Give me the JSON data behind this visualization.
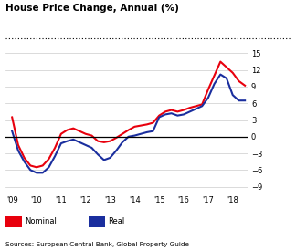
{
  "title": "House Price Change, Annual (%)",
  "source": "Sources: European Central Bank, Global Property Guide",
  "yticks": [
    -9,
    -6,
    -3,
    0,
    3,
    6,
    9,
    12,
    15
  ],
  "xtick_labels": [
    "'09",
    "'10",
    "'11",
    "'12",
    "'13",
    "'14",
    "'15",
    "'16",
    "'17",
    "'18"
  ],
  "nominal_color": "#e8000d",
  "real_color": "#1a2e9e",
  "background_color": "#ffffff",
  "nominal_x": [
    2009.0,
    2009.25,
    2009.5,
    2009.75,
    2010.0,
    2010.25,
    2010.5,
    2010.75,
    2011.0,
    2011.25,
    2011.5,
    2011.75,
    2012.0,
    2012.25,
    2012.5,
    2012.75,
    2013.0,
    2013.25,
    2013.5,
    2013.75,
    2014.0,
    2014.25,
    2014.5,
    2014.75,
    2015.0,
    2015.25,
    2015.5,
    2015.75,
    2016.0,
    2016.25,
    2016.5,
    2016.75,
    2017.0,
    2017.25,
    2017.5,
    2017.75,
    2018.0,
    2018.25,
    2018.5
  ],
  "nominal_y": [
    3.5,
    -1.5,
    -3.8,
    -5.2,
    -5.5,
    -5.2,
    -4.0,
    -2.0,
    0.5,
    1.2,
    1.5,
    1.0,
    0.5,
    0.2,
    -0.8,
    -1.0,
    -0.8,
    -0.2,
    0.5,
    1.2,
    1.8,
    2.0,
    2.2,
    2.5,
    3.8,
    4.5,
    4.8,
    4.5,
    4.8,
    5.2,
    5.5,
    5.8,
    8.5,
    11.0,
    13.5,
    12.5,
    11.5,
    10.0,
    9.2
  ],
  "real_x": [
    2009.0,
    2009.25,
    2009.5,
    2009.75,
    2010.0,
    2010.25,
    2010.5,
    2010.75,
    2011.0,
    2011.25,
    2011.5,
    2011.75,
    2012.0,
    2012.25,
    2012.5,
    2012.75,
    2013.0,
    2013.25,
    2013.5,
    2013.75,
    2014.0,
    2014.25,
    2014.5,
    2014.75,
    2015.0,
    2015.25,
    2015.5,
    2015.75,
    2016.0,
    2016.25,
    2016.5,
    2016.75,
    2017.0,
    2017.25,
    2017.5,
    2017.75,
    2018.0,
    2018.25,
    2018.5
  ],
  "real_y": [
    1.0,
    -2.5,
    -4.5,
    -6.0,
    -6.5,
    -6.5,
    -5.5,
    -3.5,
    -1.2,
    -0.8,
    -0.5,
    -1.0,
    -1.5,
    -2.0,
    -3.2,
    -4.2,
    -3.8,
    -2.5,
    -1.0,
    0.0,
    0.2,
    0.5,
    0.8,
    1.0,
    3.5,
    4.0,
    4.2,
    3.8,
    4.0,
    4.5,
    5.0,
    5.5,
    7.0,
    9.5,
    11.2,
    10.5,
    7.5,
    6.5,
    6.5
  ]
}
